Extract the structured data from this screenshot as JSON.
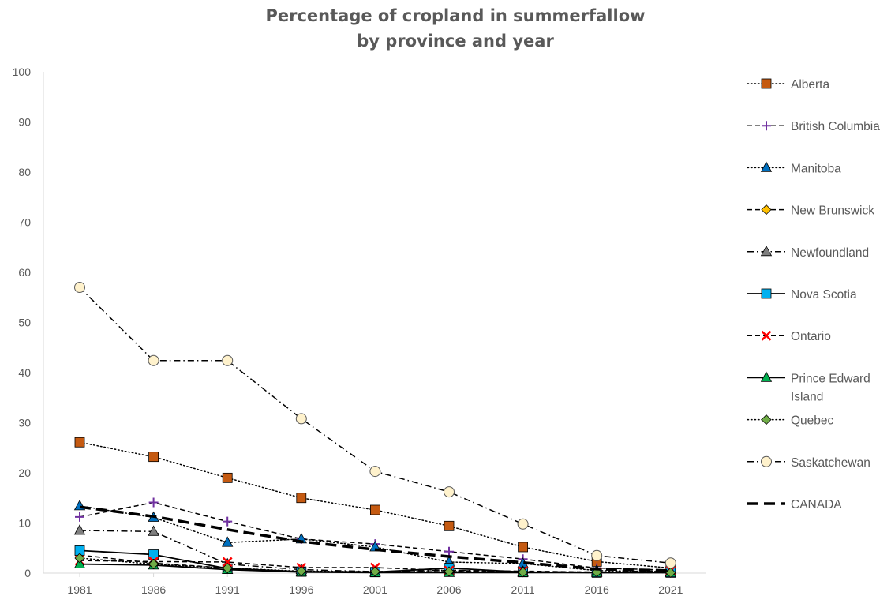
{
  "chart_data": {
    "type": "line",
    "title_lines": [
      "Percentage of cropland in summerfallow",
      "by province and year"
    ],
    "x": [
      "1981",
      "1986",
      "1991",
      "1996",
      "2001",
      "2006",
      "2011",
      "2016",
      "2021"
    ],
    "ylim": [
      0,
      100
    ],
    "yticks": [
      "0",
      "10",
      "20",
      "30",
      "40",
      "50",
      "60",
      "70",
      "80",
      "90",
      "100"
    ],
    "grid": false,
    "legend_position": "right",
    "series": [
      {
        "name": "Alberta",
        "legend_lines": [
          "Alberta"
        ],
        "values": [
          26.1,
          23.2,
          19.0,
          15.0,
          12.6,
          9.4,
          5.2,
          2.3,
          1.0
        ],
        "dash": "dot",
        "marker": "square",
        "color": "#c55a11"
      },
      {
        "name": "British Columbia",
        "legend_lines": [
          "British Columbia"
        ],
        "values": [
          11.2,
          14.1,
          10.3,
          6.8,
          5.8,
          4.3,
          2.8,
          1.0,
          0.6
        ],
        "dash": "dash",
        "marker": "plus",
        "color": "#7030a0"
      },
      {
        "name": "Manitoba",
        "legend_lines": [
          "Manitoba"
        ],
        "values": [
          13.4,
          11.1,
          6.1,
          6.8,
          5.2,
          2.2,
          1.9,
          0.5,
          0.3
        ],
        "dash": "dot",
        "marker": "triangle",
        "color": "#0070c0"
      },
      {
        "name": "New Brunswick",
        "legend_lines": [
          "New Brunswick"
        ],
        "values": [
          3.6,
          2.0,
          1.0,
          0.3,
          0.3,
          0.3,
          0.2,
          0.1,
          0.1
        ],
        "dash": "dash",
        "marker": "diamond",
        "color": "#ffc000"
      },
      {
        "name": "Newfoundland",
        "legend_lines": [
          "Newfoundland"
        ],
        "values": [
          8.5,
          8.3,
          1.8,
          0.7,
          0.3,
          0.6,
          0.3,
          0.2,
          0.1
        ],
        "dash": "dashdot",
        "marker": "triangle",
        "color": "#7f7f7f"
      },
      {
        "name": "Nova Scotia",
        "legend_lines": [
          "Nova Scotia"
        ],
        "values": [
          4.5,
          3.7,
          0.9,
          0.3,
          0.2,
          1.0,
          0.2,
          0.1,
          0.1
        ],
        "dash": "solid",
        "marker": "square",
        "color": "#00b0f0"
      },
      {
        "name": "Ontario",
        "legend_lines": [
          "Ontario"
        ],
        "values": [
          2.5,
          2.3,
          2.2,
          1.1,
          1.1,
          0.5,
          0.4,
          0.2,
          0.5
        ],
        "dash": "dash",
        "marker": "x",
        "color": "#ff0000"
      },
      {
        "name": "Prince Edward Island",
        "legend_lines": [
          "Prince Edward",
          "Island"
        ],
        "values": [
          1.8,
          1.6,
          0.7,
          0.2,
          0.1,
          0.1,
          0.1,
          0.1,
          0.1
        ],
        "dash": "solid",
        "marker": "triangle",
        "color": "#00b050"
      },
      {
        "name": "Quebec",
        "legend_lines": [
          "Quebec"
        ],
        "values": [
          3.0,
          1.8,
          1.0,
          0.4,
          0.3,
          0.3,
          0.2,
          0.2,
          0.1
        ],
        "dash": "dot",
        "marker": "diamond",
        "color": "#70ad47"
      },
      {
        "name": "Saskatchewan",
        "legend_lines": [
          "Saskatchewan"
        ],
        "values": [
          57.0,
          42.4,
          42.4,
          30.8,
          20.3,
          16.2,
          9.8,
          3.5,
          2.0
        ],
        "dash": "dashdot",
        "marker": "circle",
        "color": "#fff2cc"
      },
      {
        "name": "CANADA",
        "legend_lines": [
          "CANADA"
        ],
        "values": [
          13.2,
          11.3,
          8.7,
          6.3,
          4.7,
          3.3,
          2.1,
          0.8,
          0.5
        ],
        "dash": "longdash",
        "marker": "none",
        "color": "#000000"
      }
    ]
  }
}
